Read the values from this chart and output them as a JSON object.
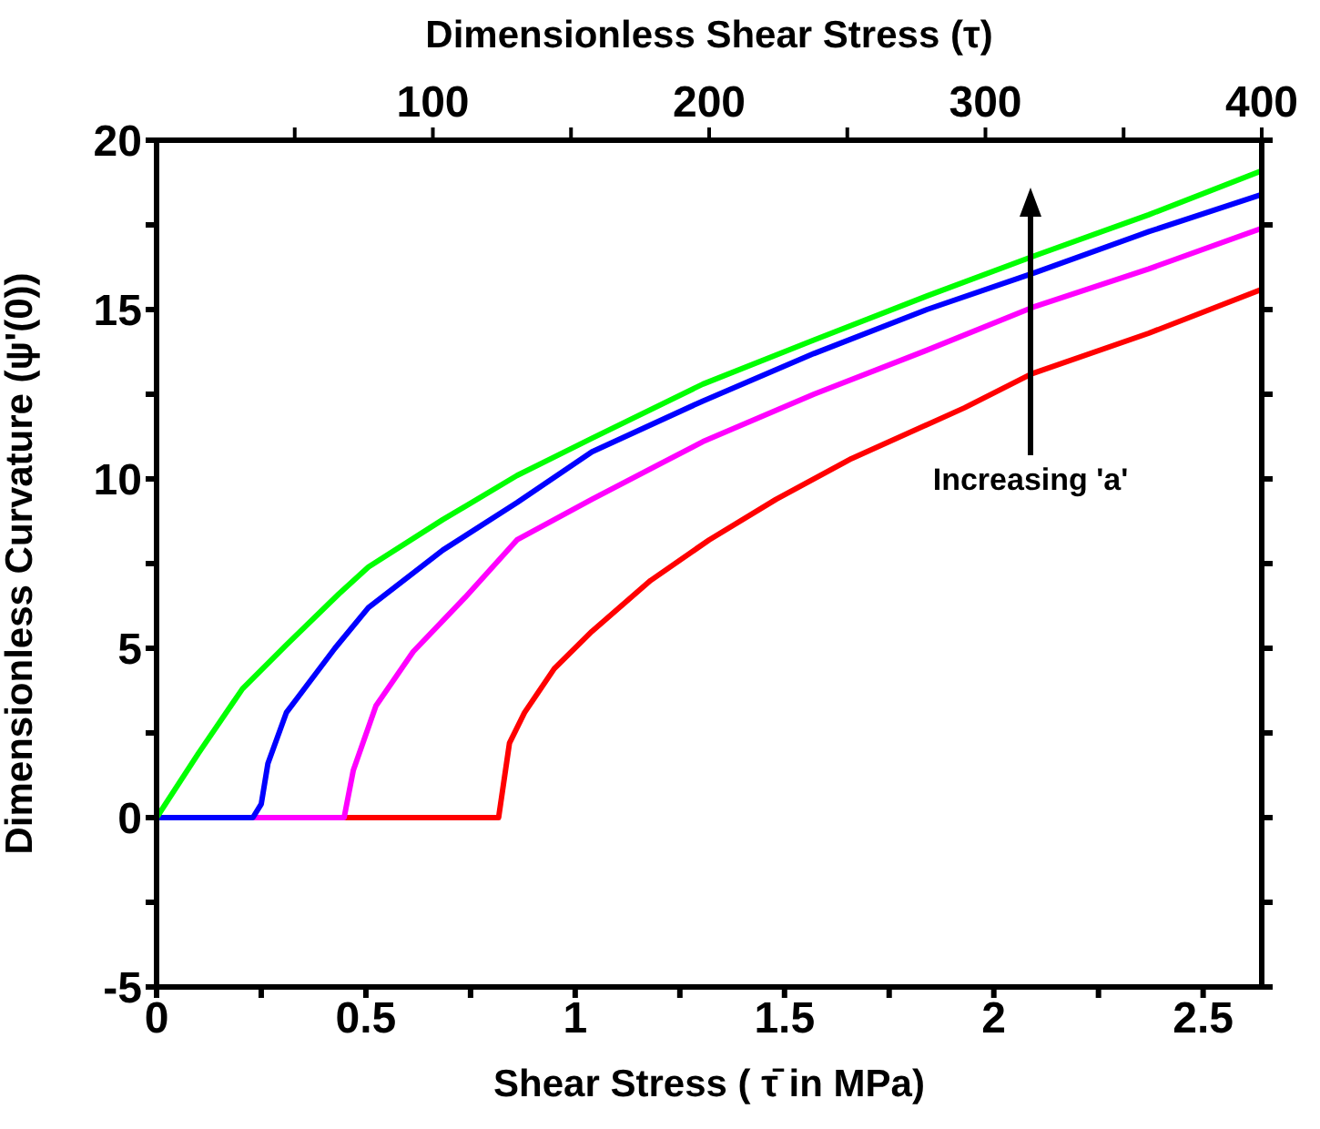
{
  "chart_data": {
    "type": "line",
    "title": "Dimensionless Shear Stress  (τ)",
    "xlabel": "Shear Stress ( τ̄ in MPa)",
    "ylabel": "Dimensionless Curvature (ψ'(0))",
    "annotations": [
      "Increasing 'a'"
    ],
    "xlim": [
      0,
      2.64
    ],
    "xticks": [
      0,
      {
        "value": 0.25,
        "label": null
      },
      0.5,
      {
        "value": 0.75,
        "label": null
      },
      1,
      {
        "value": 1.25,
        "label": null
      },
      1.5,
      {
        "value": 1.75,
        "label": null
      },
      2,
      {
        "value": 2.25,
        "label": null
      },
      2.5
    ],
    "x2lim": [
      0,
      400
    ],
    "x2ticks": [
      {
        "value": 50,
        "label": null
      },
      100,
      {
        "value": 150,
        "label": null
      },
      200,
      {
        "value": 250,
        "label": null
      },
      300,
      {
        "value": 350,
        "label": null
      },
      400
    ],
    "ylim": [
      -5,
      20
    ],
    "yticks": [
      -5,
      {
        "value": -2.5,
        "label": null
      },
      0,
      {
        "value": 2.5,
        "label": null
      },
      5,
      {
        "value": 7.5,
        "label": null
      },
      10,
      {
        "value": 12.5,
        "label": null
      },
      15,
      {
        "value": 17.5,
        "label": null
      },
      20
    ],
    "grid": false,
    "legend": false,
    "marker": "none",
    "line_style": "solid",
    "series": [
      {
        "color": "#ff0000",
        "x": [
          0,
          0.817,
          0.843,
          0.879,
          0.95,
          1.04,
          1.18,
          1.32,
          1.48,
          1.66,
          1.93,
          2.09,
          2.37,
          2.64
        ],
        "values": [
          0,
          0,
          2.2,
          3.1,
          4.4,
          5.5,
          7.0,
          8.2,
          9.4,
          10.6,
          12.1,
          13.1,
          14.3,
          15.6
        ]
      },
      {
        "color": "#ff00ff",
        "x": [
          0,
          0.448,
          0.47,
          0.524,
          0.613,
          0.737,
          0.861,
          1.04,
          1.305,
          1.57,
          1.84,
          2.1,
          2.37,
          2.64
        ],
        "values": [
          0,
          0,
          1.4,
          3.3,
          4.9,
          6.5,
          8.2,
          9.4,
          11.1,
          12.5,
          13.8,
          15.1,
          16.2,
          17.4
        ]
      },
      {
        "color": "#0000ff",
        "x": [
          0,
          0.23,
          0.25,
          0.266,
          0.31,
          0.426,
          0.506,
          0.684,
          0.861,
          1.04,
          1.305,
          1.57,
          1.84,
          2.1,
          2.37,
          2.64
        ],
        "values": [
          0,
          0,
          0.4,
          1.6,
          3.1,
          5.0,
          6.2,
          7.9,
          9.3,
          10.8,
          12.3,
          13.7,
          15.0,
          16.1,
          17.3,
          18.4
        ]
      },
      {
        "color": "#00ff00",
        "x": [
          0,
          0.1,
          0.205,
          0.31,
          0.435,
          0.506,
          0.684,
          0.861,
          1.04,
          1.305,
          1.57,
          1.84,
          2.1,
          2.37,
          2.64
        ],
        "values": [
          0,
          1.9,
          3.8,
          5.1,
          6.6,
          7.4,
          8.8,
          10.1,
          11.2,
          12.8,
          14.1,
          15.4,
          16.6,
          17.8,
          19.1
        ]
      }
    ]
  }
}
